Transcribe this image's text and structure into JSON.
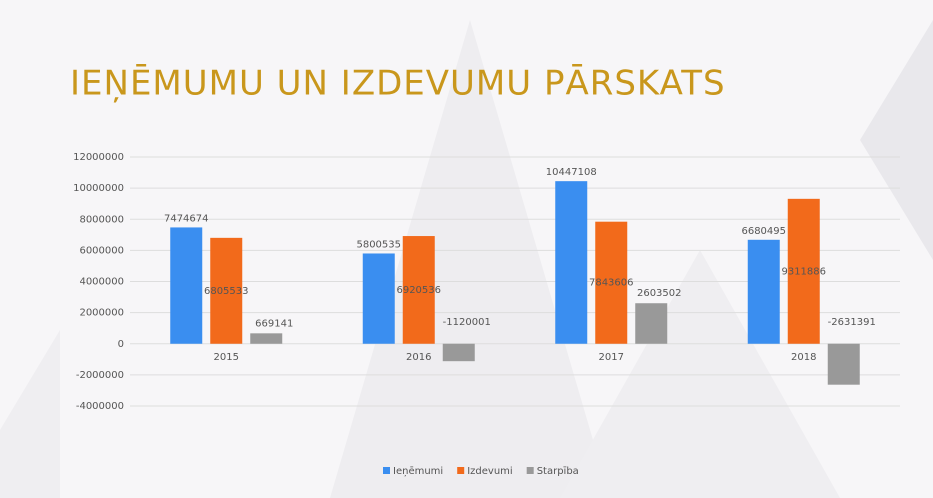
{
  "chart_data": {
    "type": "bar",
    "title": "IEŅĒMUMU UN IZDEVUMU PĀRSKATS",
    "categories": [
      "2015",
      "2016",
      "2017",
      "2018"
    ],
    "series": [
      {
        "name": "Ieņēmumi",
        "color": "#3a8ef0",
        "values": [
          7474674,
          5800535,
          10447108,
          6680495
        ]
      },
      {
        "name": "Izdevumi",
        "color": "#f26a1b",
        "values": [
          6805533,
          6920536,
          7843606,
          9311886
        ]
      },
      {
        "name": "Starpība",
        "color": "#999999",
        "values": [
          669141,
          -1120001,
          2603502,
          -2631391
        ]
      }
    ],
    "ylim": [
      -4000000,
      12000000
    ],
    "yticks": [
      -4000000,
      -2000000,
      0,
      2000000,
      4000000,
      6000000,
      8000000,
      10000000,
      12000000
    ],
    "grid": true,
    "legend": "bottom"
  }
}
